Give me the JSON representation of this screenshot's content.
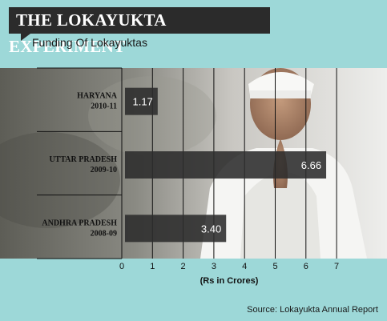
{
  "header": {
    "title": "THE LOKAYUKTA EXPERIMENT",
    "subtitle": "Funding Of Lokayuktas"
  },
  "footer": {
    "source": "Source: Lokayukta Annual Report"
  },
  "colors": {
    "background": "#9dd8d8",
    "title_box": "#2b2b2b",
    "bar": "#2b2b2b",
    "gridline": "#111111"
  },
  "chart_data": {
    "type": "bar",
    "orientation": "horizontal",
    "categories": [
      [
        "HARYANA",
        "2010-11"
      ],
      [
        "UTTAR PRADESH",
        "2009-10"
      ],
      [
        "ANDHRA PRADESH",
        "2008-09"
      ]
    ],
    "values": [
      1.17,
      6.66,
      3.4
    ],
    "value_labels": [
      "1.17",
      "6.66",
      "3.40"
    ],
    "xlabel": "(Rs in Crores)",
    "xlim": [
      0,
      7
    ],
    "xticks": [
      "0",
      "1",
      "2",
      "3",
      "4",
      "5",
      "6",
      "7"
    ],
    "grid": true
  }
}
